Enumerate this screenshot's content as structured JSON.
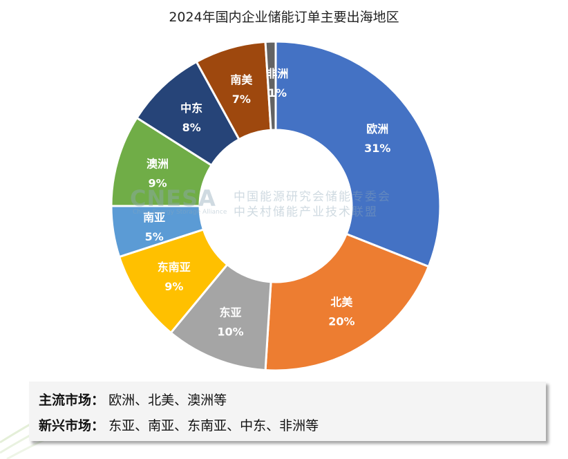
{
  "chart_data": {
    "type": "pie",
    "title": "2024年国内企业储能订单主要出海地区",
    "categories": [
      "欧洲",
      "北美",
      "东亚",
      "东南亚",
      "南亚",
      "澳洲",
      "中东",
      "南美",
      "非洲"
    ],
    "values": [
      31,
      20,
      10,
      9,
      5,
      9,
      8,
      7,
      1
    ],
    "labels": [
      "31%",
      "20%",
      "10%",
      "9%",
      "5%",
      "9%",
      "8%",
      "7%",
      "1%"
    ],
    "colors": [
      "#4472c4",
      "#ed7d31",
      "#a5a5a5",
      "#ffc000",
      "#5b9bd5",
      "#70ad47",
      "#264478",
      "#9e480e",
      "#636363"
    ],
    "donut": true
  },
  "watermark": {
    "logo": "CNESA",
    "subtitle": "China Energy Storage Alliance",
    "line1": "中国能源研究会储能专委会",
    "line2": "中关村储能产业技术联盟"
  },
  "summary": {
    "mainstream_label": "主流市场：",
    "mainstream_value": "欧洲、北美、澳洲等",
    "emerging_label": "新兴市场：",
    "emerging_value": "东亚、南亚、东南亚、中东、非洲等"
  }
}
